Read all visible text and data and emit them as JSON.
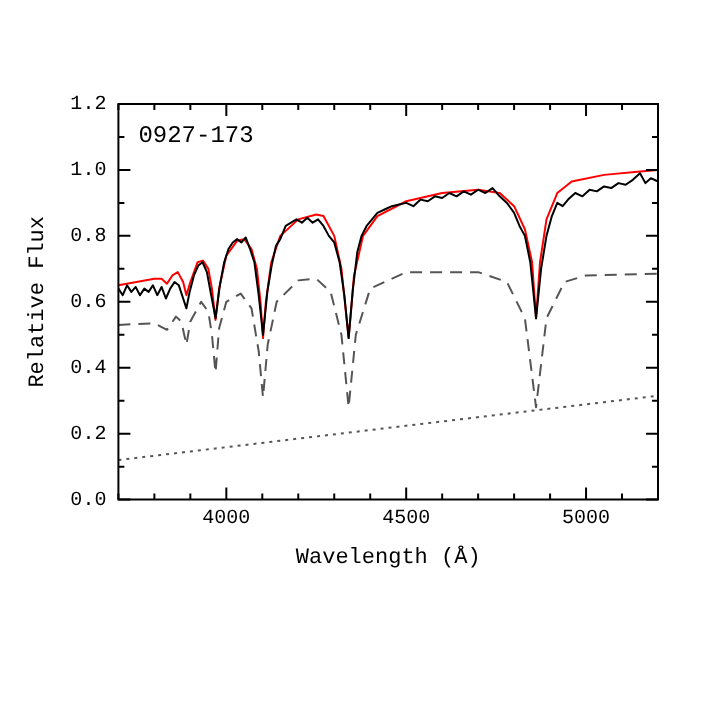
{
  "chart_data": {
    "type": "line",
    "xlabel": "Wavelength (Å)",
    "ylabel": "Relative Flux",
    "annotations": [
      "0927-173"
    ],
    "xlim": [
      3700,
      5200
    ],
    "xticks": [
      {
        "value": 3700,
        "label": null
      },
      {
        "value": 3800,
        "label": null
      },
      {
        "value": 3900,
        "label": null
      },
      4000,
      {
        "value": 4100,
        "label": null
      },
      {
        "value": 4200,
        "label": null
      },
      {
        "value": 4300,
        "label": null
      },
      {
        "value": 4400,
        "label": null
      },
      4500,
      {
        "value": 4600,
        "label": null
      },
      {
        "value": 4700,
        "label": null
      },
      {
        "value": 4800,
        "label": null
      },
      {
        "value": 4900,
        "label": null
      },
      5000,
      {
        "value": 5100,
        "label": null
      },
      {
        "value": 5200,
        "label": null
      }
    ],
    "ylim": [
      0,
      1.2
    ],
    "yticks": [
      {
        "value": 0,
        "label": "0.0"
      },
      {
        "value": 0.1,
        "label": null
      },
      {
        "value": 0.2,
        "label": "0.2"
      },
      {
        "value": 0.3,
        "label": null
      },
      {
        "value": 0.4,
        "label": "0.4"
      },
      {
        "value": 0.5,
        "label": null
      },
      {
        "value": 0.6,
        "label": "0.6"
      },
      {
        "value": 0.7,
        "label": null
      },
      {
        "value": 0.8,
        "label": "0.8"
      },
      {
        "value": 0.9,
        "label": null
      },
      {
        "value": 1,
        "label": "1.0"
      },
      {
        "value": 1.1,
        "label": null
      },
      {
        "value": 1.2,
        "label": "1.2"
      }
    ],
    "grid": false,
    "legend": false,
    "marker": "none",
    "series": [
      {
        "color": "#000000",
        "line_style": "solid",
        "x": [
          3700,
          3712,
          3724,
          3736,
          3748,
          3760,
          3772,
          3784,
          3796,
          3808,
          3820,
          3832,
          3844,
          3856,
          3868,
          3880,
          3889,
          3898,
          3910,
          3922,
          3934,
          3946,
          3958,
          3970,
          3982,
          3994,
          4006,
          4018,
          4030,
          4042,
          4054,
          4066,
          4078,
          4090,
          4102,
          4114,
          4126,
          4138,
          4150,
          4165,
          4180,
          4195,
          4210,
          4225,
          4240,
          4255,
          4270,
          4285,
          4300,
          4315,
          4328,
          4340,
          4352,
          4364,
          4376,
          4390,
          4405,
          4420,
          4440,
          4460,
          4480,
          4500,
          4520,
          4540,
          4560,
          4580,
          4600,
          4620,
          4640,
          4660,
          4680,
          4700,
          4720,
          4740,
          4760,
          4780,
          4800,
          4815,
          4830,
          4845,
          4861,
          4875,
          4890,
          4905,
          4920,
          4935,
          4950,
          4970,
          4990,
          5010,
          5030,
          5050,
          5070,
          5090,
          5110,
          5130,
          5150,
          5165,
          5180,
          5200
        ],
        "values": [
          0.64,
          0.62,
          0.65,
          0.63,
          0.645,
          0.62,
          0.64,
          0.63,
          0.65,
          0.62,
          0.645,
          0.61,
          0.64,
          0.66,
          0.65,
          0.61,
          0.58,
          0.63,
          0.68,
          0.71,
          0.72,
          0.69,
          0.62,
          0.55,
          0.65,
          0.72,
          0.76,
          0.78,
          0.79,
          0.78,
          0.795,
          0.76,
          0.72,
          0.62,
          0.5,
          0.63,
          0.71,
          0.77,
          0.79,
          0.83,
          0.84,
          0.85,
          0.84,
          0.855,
          0.84,
          0.85,
          0.83,
          0.8,
          0.78,
          0.72,
          0.62,
          0.49,
          0.64,
          0.75,
          0.8,
          0.83,
          0.85,
          0.87,
          0.88,
          0.89,
          0.895,
          0.9,
          0.89,
          0.91,
          0.905,
          0.92,
          0.915,
          0.93,
          0.92,
          0.935,
          0.925,
          0.94,
          0.93,
          0.945,
          0.92,
          0.9,
          0.87,
          0.83,
          0.8,
          0.72,
          0.55,
          0.7,
          0.8,
          0.86,
          0.9,
          0.89,
          0.91,
          0.93,
          0.92,
          0.94,
          0.935,
          0.95,
          0.945,
          0.96,
          0.955,
          0.97,
          0.99,
          0.96,
          0.975,
          0.965
        ]
      },
      {
        "color": "#ff0000",
        "line_style": "solid",
        "x": [
          3700,
          3750,
          3800,
          3820,
          3835,
          3850,
          3865,
          3880,
          3889,
          3900,
          3920,
          3935,
          3950,
          3960,
          3970,
          3980,
          4000,
          4030,
          4050,
          4070,
          4085,
          4095,
          4102,
          4110,
          4125,
          4150,
          4200,
          4250,
          4270,
          4300,
          4320,
          4340,
          4355,
          4380,
          4420,
          4500,
          4600,
          4700,
          4760,
          4800,
          4830,
          4850,
          4861,
          4872,
          4890,
          4920,
          4960,
          5050,
          5150,
          5200
        ],
        "values": [
          0.65,
          0.66,
          0.67,
          0.67,
          0.655,
          0.68,
          0.69,
          0.66,
          0.62,
          0.66,
          0.72,
          0.725,
          0.7,
          0.64,
          0.545,
          0.64,
          0.74,
          0.785,
          0.79,
          0.76,
          0.7,
          0.6,
          0.49,
          0.6,
          0.72,
          0.8,
          0.85,
          0.865,
          0.86,
          0.8,
          0.7,
          0.49,
          0.68,
          0.8,
          0.86,
          0.905,
          0.93,
          0.94,
          0.93,
          0.89,
          0.82,
          0.72,
          0.55,
          0.72,
          0.85,
          0.93,
          0.965,
          0.985,
          0.995,
          1.0
        ]
      },
      {
        "color": "#555555",
        "line_style": "dashed",
        "x": [
          3700,
          3800,
          3835,
          3860,
          3875,
          3889,
          3900,
          3930,
          3950,
          3960,
          3970,
          3980,
          4000,
          4040,
          4070,
          4090,
          4102,
          4115,
          4140,
          4200,
          4250,
          4290,
          4320,
          4340,
          4360,
          4400,
          4500,
          4700,
          4780,
          4830,
          4861,
          4890,
          4940,
          5000,
          5200
        ],
        "values": [
          0.53,
          0.535,
          0.515,
          0.555,
          0.54,
          0.47,
          0.54,
          0.6,
          0.57,
          0.5,
          0.385,
          0.52,
          0.6,
          0.625,
          0.58,
          0.45,
          0.31,
          0.47,
          0.6,
          0.665,
          0.67,
          0.63,
          0.5,
          0.28,
          0.5,
          0.64,
          0.69,
          0.69,
          0.66,
          0.55,
          0.28,
          0.55,
          0.66,
          0.68,
          0.685
        ]
      },
      {
        "color": "#555555",
        "line_style": "dotted",
        "x": [
          3700,
          5200
        ],
        "values": [
          0.12,
          0.315
        ]
      }
    ]
  }
}
